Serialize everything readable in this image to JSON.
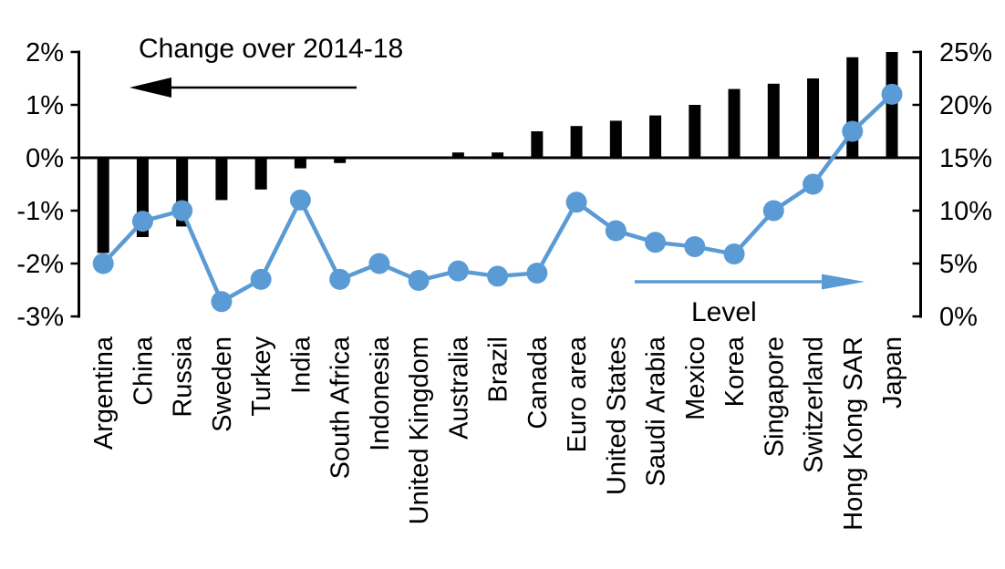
{
  "chart_data": {
    "type": "bar",
    "subtype": "dual-axis-bar-and-line",
    "title": "",
    "categories": [
      "Argentina",
      "China",
      "Russia",
      "Sweden",
      "Turkey",
      "India",
      "South Africa",
      "Indonesia",
      "United Kingdom",
      "Australia",
      "Brazil",
      "Canada",
      "Euro area",
      "United States",
      "Saudi Arabia",
      "Mexico",
      "Korea",
      "Singapore",
      "Switzerland",
      "Hong Kong SAR",
      "Japan"
    ],
    "series": [
      {
        "name": "Change over 2014-18",
        "type": "bar",
        "axis": "left",
        "color": "#000000",
        "values": [
          -1.8,
          -1.5,
          -1.3,
          -0.8,
          -0.6,
          -0.2,
          -0.1,
          0.0,
          0.0,
          0.1,
          0.1,
          0.5,
          0.6,
          0.7,
          0.8,
          1.0,
          1.3,
          1.4,
          1.5,
          1.9,
          2.0
        ]
      },
      {
        "name": "Level",
        "type": "line",
        "axis": "right",
        "color": "#5B9BD5",
        "values": [
          5.0,
          9.0,
          10.0,
          1.4,
          3.5,
          11.0,
          3.5,
          5.0,
          3.4,
          4.3,
          3.8,
          4.1,
          10.8,
          8.1,
          7.0,
          6.6,
          5.9,
          10.0,
          12.5,
          17.5,
          21.0
        ]
      }
    ],
    "left_axis": {
      "tick_labels": [
        "2%",
        "1%",
        "0%",
        "-1%",
        "-2%",
        "-3%"
      ],
      "tick_values": [
        2,
        1,
        0,
        -1,
        -2,
        -3
      ],
      "min": -3,
      "max": 2
    },
    "right_axis": {
      "tick_labels": [
        "25%",
        "20%",
        "15%",
        "10%",
        "5%",
        "0%"
      ],
      "tick_values": [
        25,
        20,
        15,
        10,
        5,
        0
      ],
      "min": 0,
      "max": 25
    },
    "annotations": {
      "change_label": "Change over 2014-18",
      "change_arrow_direction": "left",
      "level_label": "Level",
      "level_arrow_direction": "right"
    },
    "grid": false,
    "legend_position": "none"
  },
  "colors": {
    "bar": "#000000",
    "line": "#5B9BD5",
    "axis": "#000000",
    "background": "#FFFFFF",
    "text": "#000000"
  }
}
